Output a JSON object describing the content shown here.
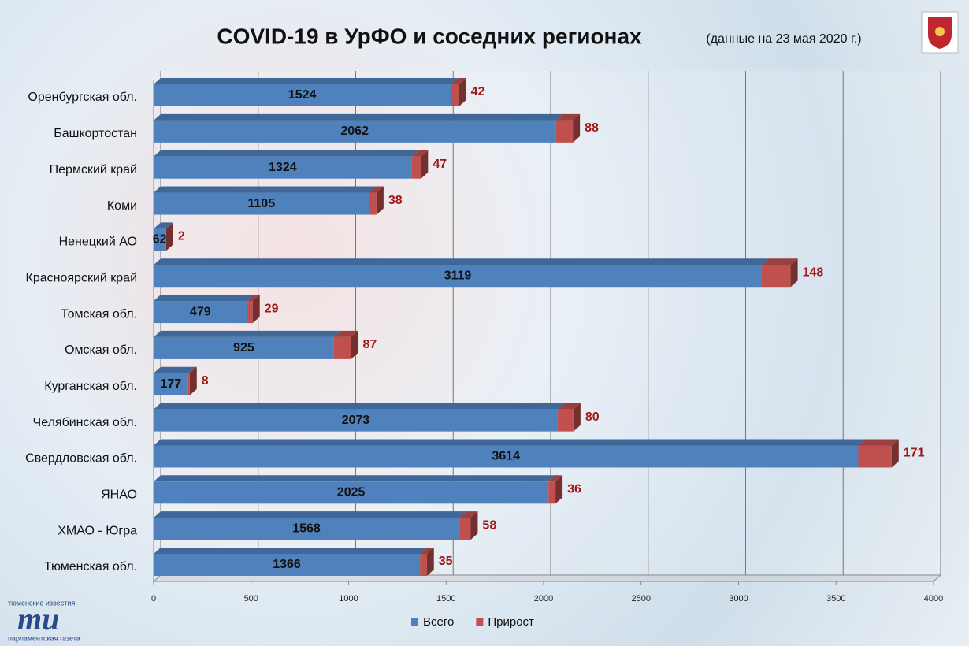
{
  "chart_data": {
    "type": "bar",
    "orientation": "horizontal",
    "stacked": true,
    "title": "COVID-19 в УрФО и соседних регионах",
    "subtitle": "(данные на 23 мая 2020 г.)",
    "categories": [
      "Оренбургская обл.",
      "Башкортостан",
      "Пермский край",
      "Коми",
      "Ненецкий АО",
      "Красноярский край",
      "Томская обл.",
      "Омская обл.",
      "Курганская обл.",
      "Челябинская обл.",
      "Свердловская обл.",
      "ЯНАО",
      "ХМАО - Югра",
      "Тюменская обл."
    ],
    "series": [
      {
        "name": "Всего",
        "color": "#4f81bd",
        "values": [
          1524,
          2062,
          1324,
          1105,
          62,
          3119,
          479,
          925,
          177,
          2073,
          3614,
          2025,
          1568,
          1366
        ]
      },
      {
        "name": "Прирост",
        "color": "#c0504d",
        "values": [
          42,
          88,
          47,
          38,
          2,
          148,
          29,
          87,
          8,
          80,
          171,
          36,
          58,
          35
        ]
      }
    ],
    "xlim": [
      0,
      4000
    ],
    "xticks": [
      0,
      500,
      1000,
      1500,
      2000,
      2500,
      3000,
      3500,
      4000
    ],
    "grid": true,
    "legend": "bottom"
  },
  "logo": {
    "top": "тюменские известия",
    "mark": "ти",
    "bottom": "парламентская газета"
  }
}
